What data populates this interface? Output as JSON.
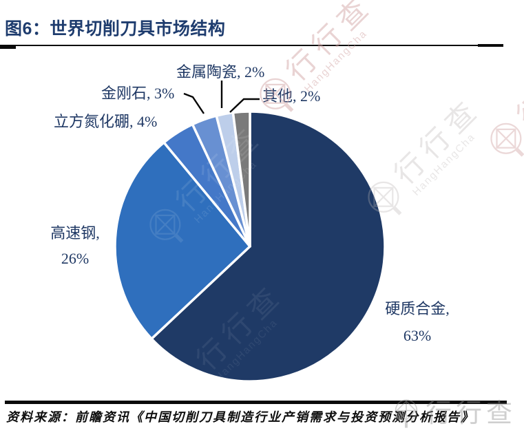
{
  "figure": {
    "title": "图6：世界切削刀具市场结构",
    "source": "资料来源：前瞻资讯《中国切削刀具制造行业产销需求与投资预测分析报告》"
  },
  "watermark": {
    "cn": "行行查",
    "en": "HangHangCha"
  },
  "colors": {
    "title_navy": "#1E3C6E",
    "label_navy": "#1F3864",
    "rule_black": "#0a0a0a",
    "slice_border": "#ffffff"
  },
  "chart_data": {
    "type": "pie",
    "title": "世界切削刀具市场结构",
    "start_angle_deg": 0,
    "direction": "clockwise",
    "legend_position": "none",
    "data_labels": "category-and-percent",
    "slices": [
      {
        "label": "硬质合金",
        "value": 63,
        "color": "#1F3A66",
        "callout": "硬质合金, 63%"
      },
      {
        "label": "高速钢",
        "value": 26,
        "color": "#2F6FBD",
        "callout": "高速钢, 26%"
      },
      {
        "label": "立方氮化硼",
        "value": 4,
        "color": "#4478C8",
        "callout": "立方氮化硼, 4%"
      },
      {
        "label": "金刚石",
        "value": 3,
        "color": "#6890D2",
        "callout": "金刚石, 3%"
      },
      {
        "label": "金属陶瓷",
        "value": 2,
        "color": "#BDCEEA",
        "callout": "金属陶瓷, 2%"
      },
      {
        "label": "其他",
        "value": 2,
        "color": "#7A7A7A",
        "callout": "其他, 2%"
      }
    ]
  },
  "callouts": {
    "carbide_line1": "硬质合金,",
    "carbide_line2": "63%",
    "hss_line1": "高速钢,",
    "hss_line2": "26%",
    "cbn": "立方氮化硼, 4%",
    "diamond": "金刚石, 3%",
    "cermet": "金属陶瓷, 2%",
    "other": "其他, 2%"
  }
}
